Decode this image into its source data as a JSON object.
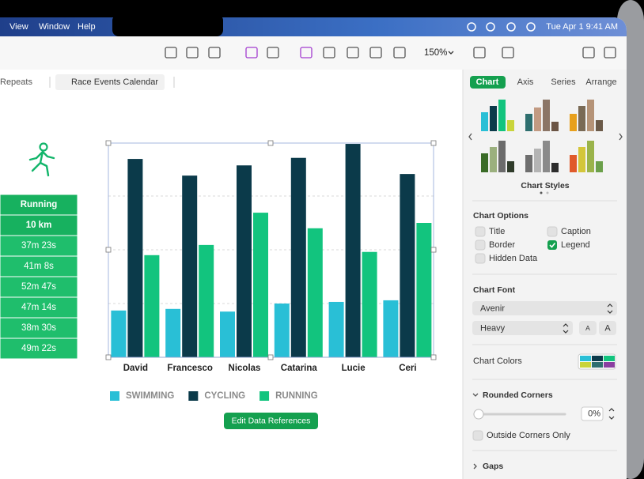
{
  "menu_bar": {
    "items": [
      "View",
      "Window",
      "Help"
    ],
    "clock": "Tue Apr 1  9:41 AM"
  },
  "toolbar": {
    "zoom": "150%"
  },
  "sheet_tabs": [
    "Repeats",
    "Race Events Calendar"
  ],
  "table": {
    "rows": [
      "Running",
      "10 km",
      "37m 23s",
      "41m 8s",
      "52m 47s",
      "47m 14s",
      "38m 30s",
      "49m 22s"
    ]
  },
  "chart": {
    "type": "bar",
    "categories": [
      "David",
      "Francesco",
      "Nicolas",
      "Catarina",
      "Lucie",
      "Ceri"
    ],
    "series": [
      {
        "name": "SWIMMING",
        "color": "#29bfd6",
        "values": [
          0.87,
          0.9,
          0.85,
          1.0,
          1.03,
          1.06
        ]
      },
      {
        "name": "CYCLING",
        "color": "#0b3a4a",
        "values": [
          3.69,
          3.38,
          3.57,
          3.71,
          3.97,
          3.41
        ]
      },
      {
        "name": "RUNNING",
        "color": "#12c47e",
        "values": [
          1.9,
          2.09,
          2.69,
          2.4,
          1.96,
          2.5
        ]
      }
    ],
    "ylim": [
      0,
      4
    ],
    "grid_lines": [
      1,
      2,
      3
    ],
    "legend": "bottom"
  },
  "button": "Edit Data References",
  "sidebar": {
    "tabs": [
      "Chart",
      "Axis",
      "Series",
      "Arrange"
    ],
    "chart_styles": "Chart Styles",
    "chart_options": {
      "title": "Chart Options",
      "options": [
        {
          "label": "Title",
          "checked": false
        },
        {
          "label": "Caption",
          "checked": false
        },
        {
          "label": "Border",
          "checked": false
        },
        {
          "label": "Legend",
          "checked": true
        },
        {
          "label": "Hidden Data",
          "checked": false
        }
      ]
    },
    "chart_font": {
      "title": "Chart Font",
      "font": "Avenir",
      "weight": "Heavy",
      "size_buttons": [
        "A",
        "A"
      ]
    },
    "chart_colors": "Chart Colors",
    "rounded_corners": {
      "title": "Rounded Corners",
      "value": "0%",
      "outside_corners_only": "Outside Corners Only"
    },
    "gaps": "Gaps"
  }
}
